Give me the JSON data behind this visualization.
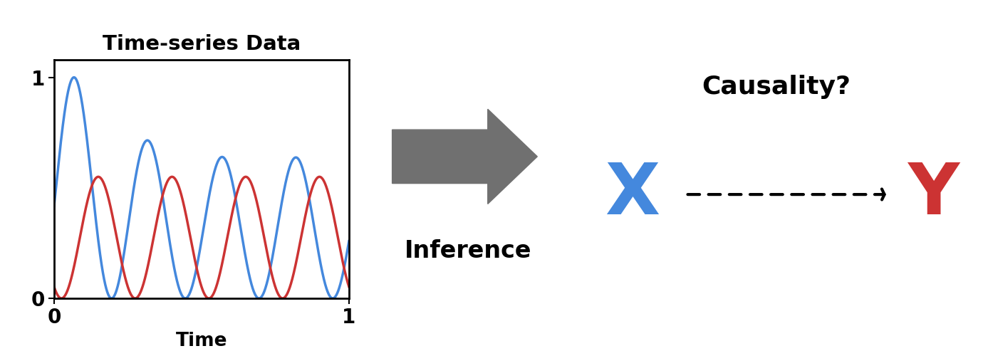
{
  "title": "Time-series Data",
  "title_fontsize": 21,
  "xlabel": "Time",
  "xlabel_fontsize": 19,
  "ylabel_fontsize": 24,
  "tick_fontsize": 20,
  "blue_color": "#4488DD",
  "red_color": "#CC3333",
  "arrow_color": "#707070",
  "background_color": "#ffffff",
  "causality_label": "Causality?",
  "inference_label": "Inference",
  "x_label": "X",
  "y_label": "Y",
  "label_fontsize_big": 72,
  "label_fontsize_med": 24,
  "label_fontsize_causality": 26
}
